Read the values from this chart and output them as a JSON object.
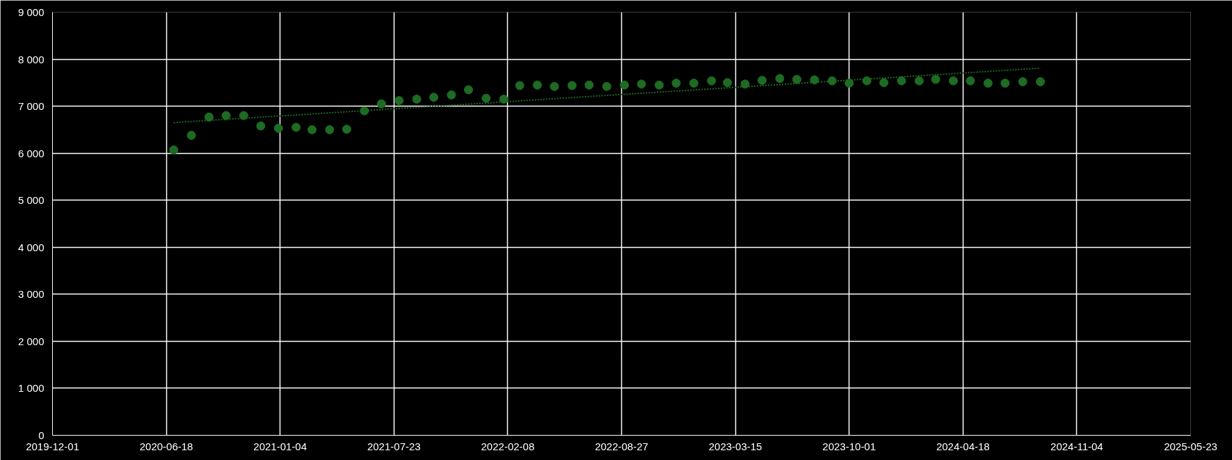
{
  "chart_data": {
    "type": "scatter",
    "grid": true,
    "xlim": [
      "2019-12-01",
      "2025-05-23"
    ],
    "xticks": [
      "2019-12-01",
      "2020-06-18",
      "2021-01-04",
      "2021-07-23",
      "2022-02-08",
      "2022-08-27",
      "2023-03-15",
      "2023-10-01",
      "2024-04-18",
      "2024-11-04",
      "2025-05-23"
    ],
    "ylim": [
      0,
      9000
    ],
    "yticks": [
      0,
      {
        "value": 1000,
        "label": "1 000"
      },
      {
        "value": 2000,
        "label": "2 000"
      },
      {
        "value": 3000,
        "label": "3 000"
      },
      {
        "value": 4000,
        "label": "4 000"
      },
      {
        "value": 5000,
        "label": "5 000"
      },
      {
        "value": 6000,
        "label": "6 000"
      },
      {
        "value": 7000,
        "label": "7 000"
      },
      {
        "value": 8000,
        "label": "8 000"
      },
      {
        "value": 9000,
        "label": "9 000"
      }
    ],
    "series": [
      {
        "marker": "circle",
        "color": "#1e6b23",
        "x": [
          "2020-07-01",
          "2020-08-01",
          "2020-09-01",
          "2020-10-01",
          "2020-11-01",
          "2020-12-01",
          "2021-01-01",
          "2021-02-01",
          "2021-03-01",
          "2021-04-01",
          "2021-05-01",
          "2021-06-01",
          "2021-07-01",
          "2021-08-01",
          "2021-09-01",
          "2021-10-01",
          "2021-11-01",
          "2021-12-01",
          "2022-01-01",
          "2022-02-01",
          "2022-03-01",
          "2022-04-01",
          "2022-05-01",
          "2022-06-01",
          "2022-07-01",
          "2022-08-01",
          "2022-09-01",
          "2022-10-01",
          "2022-11-01",
          "2022-12-01",
          "2023-01-01",
          "2023-02-01",
          "2023-03-01",
          "2023-04-01",
          "2023-05-01",
          "2023-06-01",
          "2023-07-01",
          "2023-08-01",
          "2023-09-01",
          "2023-10-01",
          "2023-11-01",
          "2023-12-01",
          "2024-01-01",
          "2024-02-01",
          "2024-03-01",
          "2024-04-01",
          "2024-05-01",
          "2024-06-01",
          "2024-07-01",
          "2024-08-01",
          "2024-09-01"
        ],
        "values": [
          6070,
          6380,
          6770,
          6800,
          6800,
          6580,
          6530,
          6550,
          6500,
          6500,
          6510,
          6900,
          7050,
          7120,
          7150,
          7190,
          7240,
          7350,
          7170,
          7150,
          7440,
          7450,
          7420,
          7440,
          7450,
          7420,
          7450,
          7470,
          7450,
          7490,
          7490,
          7540,
          7500,
          7470,
          7550,
          7590,
          7570,
          7560,
          7540,
          7490,
          7540,
          7500,
          7540,
          7540,
          7570,
          7540,
          7540,
          7490,
          7490,
          7520,
          7520
        ]
      },
      {
        "type": "line",
        "line_style": "dotted",
        "color": "#1e6b23",
        "x": [
          "2020-07-01",
          "2024-09-01"
        ],
        "values": [
          6650,
          7810
        ]
      }
    ]
  }
}
